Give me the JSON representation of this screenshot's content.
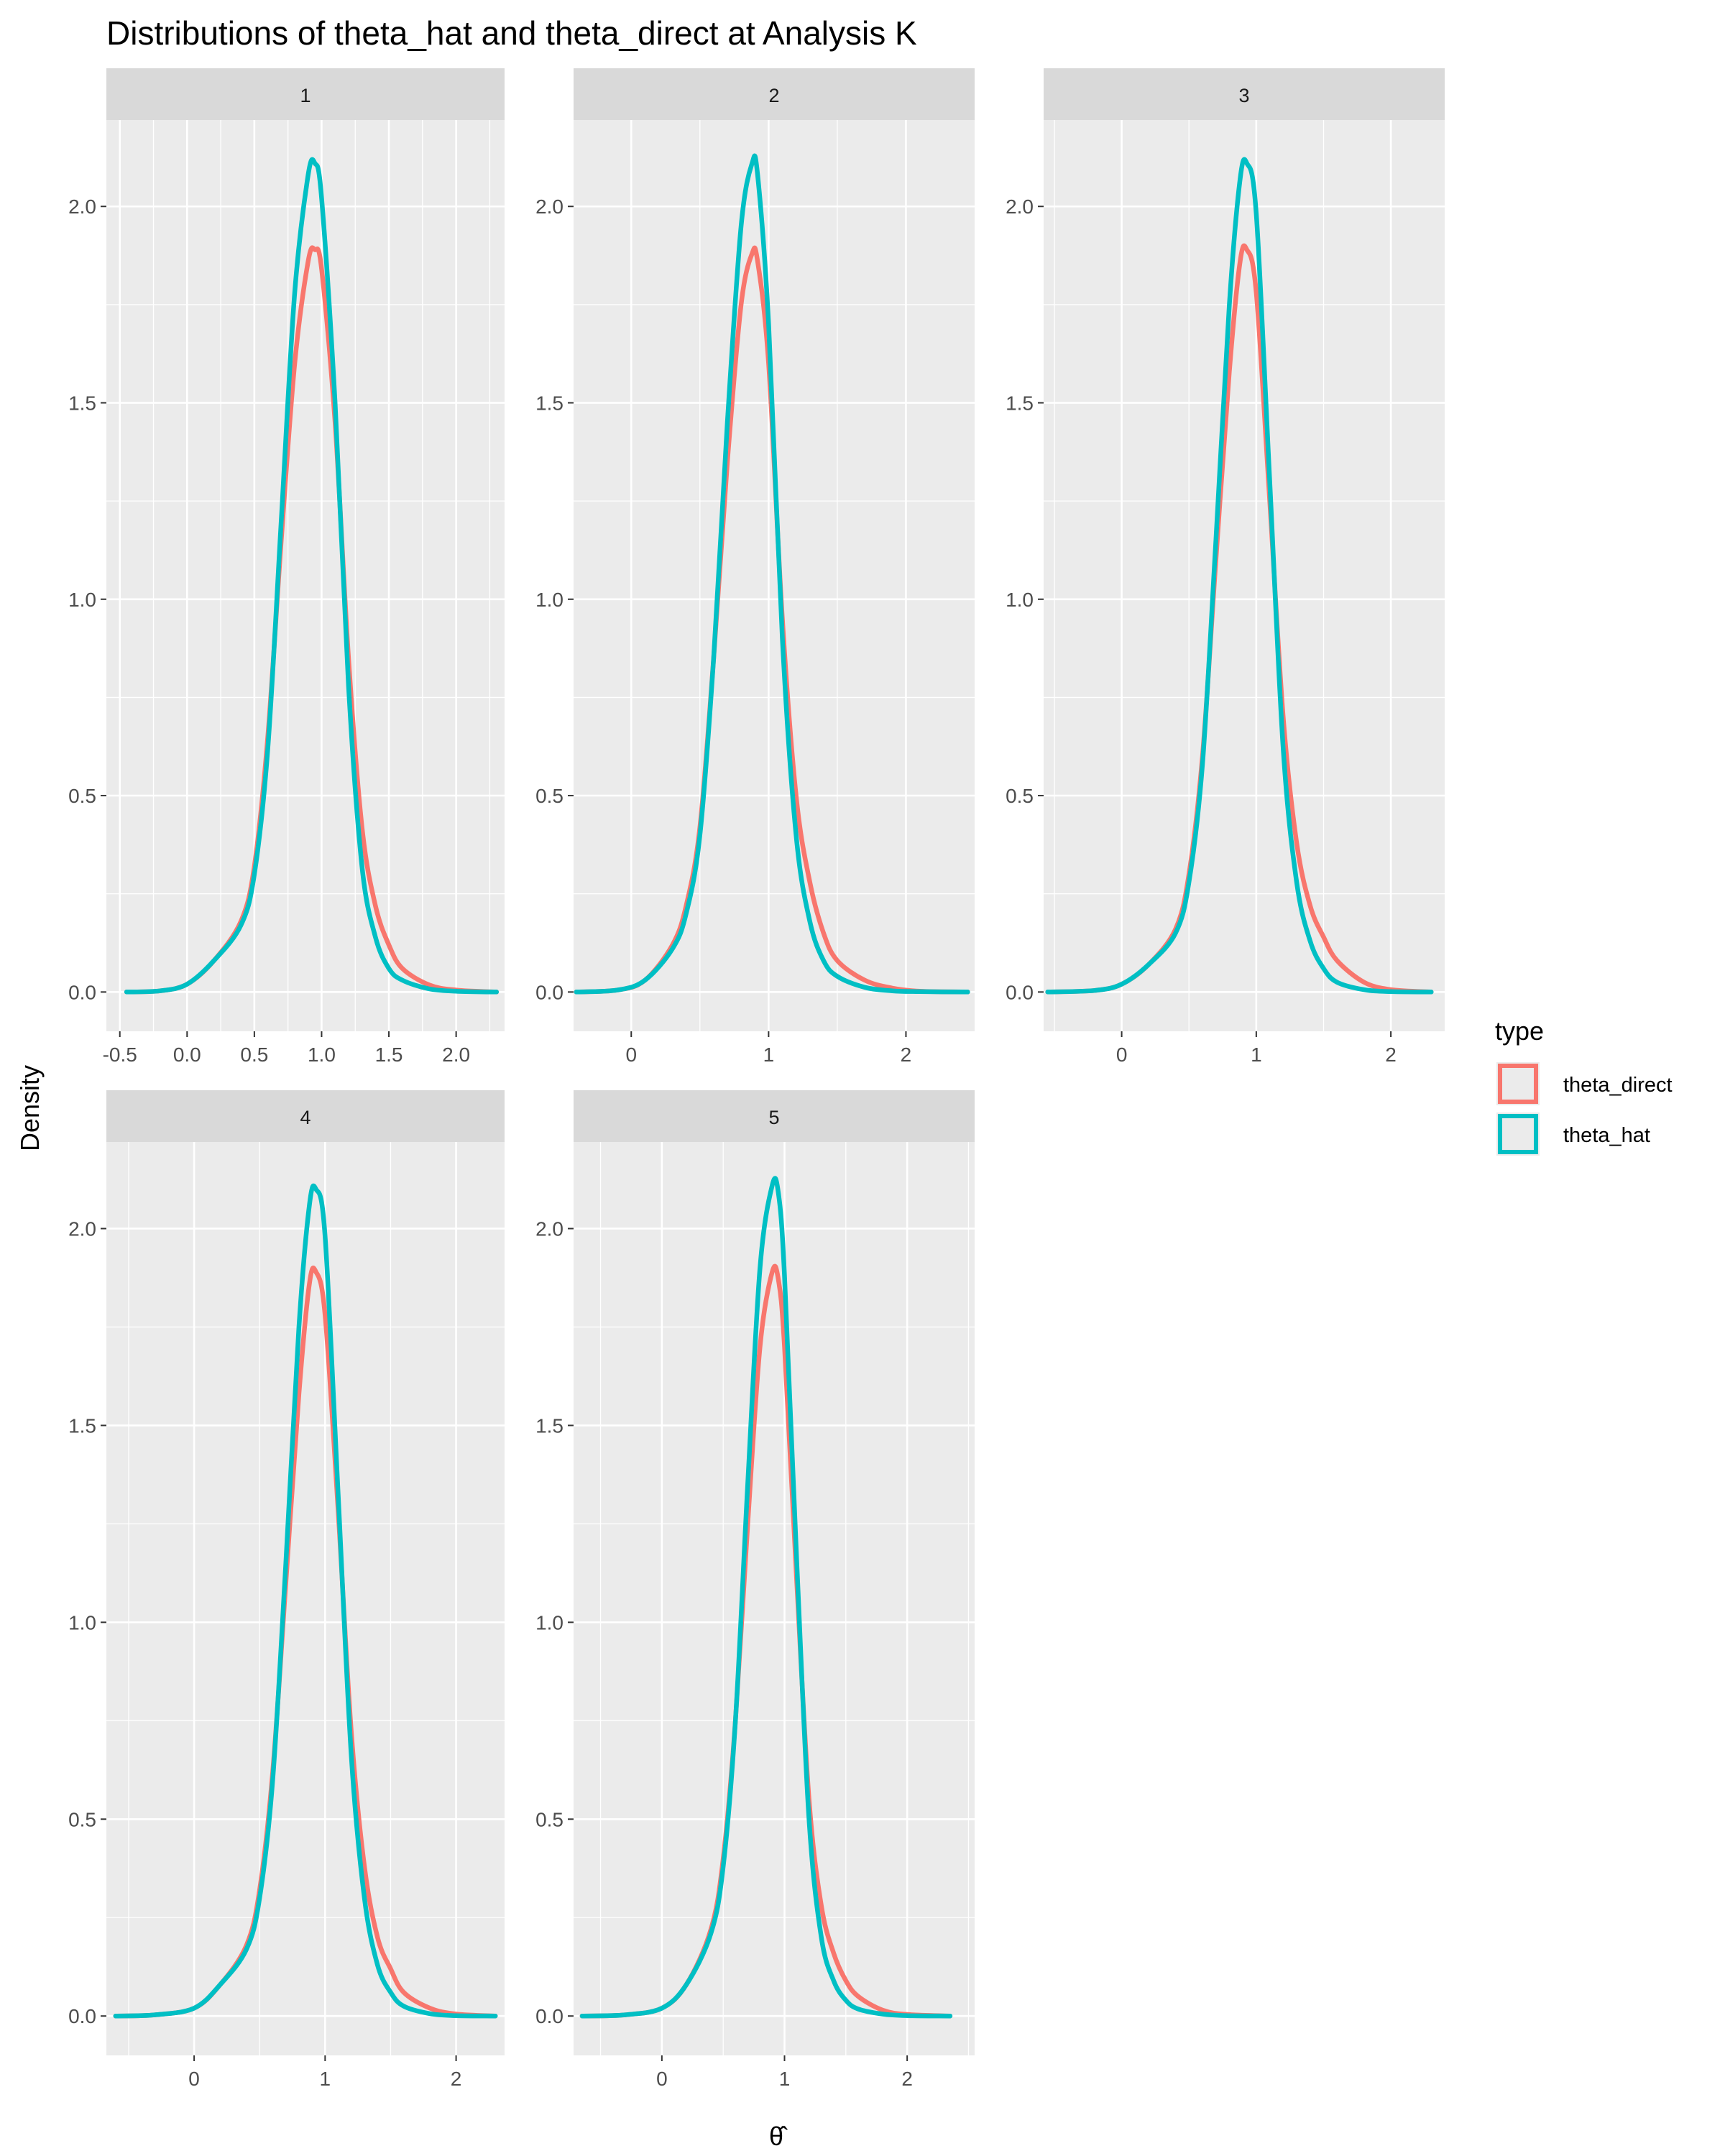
{
  "chart_data": {
    "type": "line",
    "title": "Distributions of theta_hat and theta_direct at Analysis K",
    "xlabel": "θ̂",
    "ylabel": "Density",
    "legend": {
      "title": "type",
      "position": "right",
      "entries": [
        {
          "label": "theta_direct",
          "color": "#F8766D"
        },
        {
          "label": "theta_hat",
          "color": "#00BFC4"
        }
      ]
    },
    "grid": true,
    "y_ticks": [
      "0.0",
      "0.5",
      "1.0",
      "1.5",
      "2.0"
    ],
    "ylim": [
      -0.1,
      2.22
    ],
    "panels": [
      {
        "strip": "1",
        "xlim": [
          -0.6,
          2.36
        ],
        "x_ticks": [
          {
            "v": -0.5,
            "label": "-0.5"
          },
          {
            "v": 0,
            "label": "0.0"
          },
          {
            "v": 0.5,
            "label": "0.5"
          },
          {
            "v": 1,
            "label": "1.0"
          },
          {
            "v": 1.5,
            "label": "1.5"
          },
          {
            "v": 2,
            "label": "2.0"
          }
        ],
        "series": [
          {
            "name": "theta_direct",
            "x": [
              -0.45,
              -0.2,
              0.0,
              0.2,
              0.4,
              0.5,
              0.6,
              0.7,
              0.8,
              0.9,
              0.95,
              1.0,
              1.1,
              1.2,
              1.3,
              1.4,
              1.5,
              1.6,
              1.8,
              2.0,
              2.3
            ],
            "y": [
              0.0,
              0.003,
              0.02,
              0.08,
              0.18,
              0.32,
              0.65,
              1.15,
              1.6,
              1.86,
              1.89,
              1.84,
              1.45,
              0.85,
              0.42,
              0.22,
              0.12,
              0.06,
              0.018,
              0.005,
              0.0
            ]
          },
          {
            "name": "theta_hat",
            "x": [
              -0.45,
              -0.2,
              0.0,
              0.2,
              0.4,
              0.5,
              0.6,
              0.7,
              0.8,
              0.9,
              0.95,
              1.0,
              1.1,
              1.2,
              1.3,
              1.4,
              1.5,
              1.6,
              1.8,
              2.0,
              2.3
            ],
            "y": [
              0.0,
              0.003,
              0.02,
              0.08,
              0.17,
              0.3,
              0.62,
              1.2,
              1.78,
              2.08,
              2.11,
              2.02,
              1.5,
              0.78,
              0.32,
              0.14,
              0.06,
              0.03,
              0.008,
              0.002,
              0.0
            ]
          }
        ]
      },
      {
        "strip": "2",
        "xlim": [
          -0.42,
          2.5
        ],
        "x_ticks": [
          {
            "v": 0,
            "label": "0"
          },
          {
            "v": 1,
            "label": "1"
          },
          {
            "v": 2,
            "label": "2"
          }
        ],
        "series": [
          {
            "name": "theta_direct",
            "x": [
              -0.4,
              -0.1,
              0.1,
              0.3,
              0.4,
              0.5,
              0.6,
              0.7,
              0.8,
              0.88,
              0.92,
              1.0,
              1.1,
              1.2,
              1.3,
              1.4,
              1.5,
              1.7,
              1.9,
              2.1,
              2.45
            ],
            "y": [
              0.0,
              0.005,
              0.03,
              0.12,
              0.22,
              0.42,
              0.85,
              1.35,
              1.75,
              1.88,
              1.86,
              1.6,
              0.95,
              0.5,
              0.28,
              0.15,
              0.08,
              0.03,
              0.01,
              0.002,
              0.0
            ]
          },
          {
            "name": "theta_hat",
            "x": [
              -0.4,
              -0.1,
              0.1,
              0.3,
              0.4,
              0.5,
              0.6,
              0.7,
              0.8,
              0.88,
              0.92,
              1.0,
              1.1,
              1.2,
              1.3,
              1.4,
              1.5,
              1.7,
              1.9,
              2.1,
              2.45
            ],
            "y": [
              0.0,
              0.005,
              0.03,
              0.11,
              0.2,
              0.4,
              0.85,
              1.45,
              1.95,
              2.11,
              2.08,
              1.7,
              0.9,
              0.4,
              0.18,
              0.08,
              0.04,
              0.012,
              0.003,
              0.001,
              0.0
            ]
          }
        ]
      },
      {
        "strip": "3",
        "xlim": [
          -0.58,
          2.4
        ],
        "x_ticks": [
          {
            "v": 0,
            "label": "0"
          },
          {
            "v": 1,
            "label": "1"
          },
          {
            "v": 2,
            "label": "2"
          }
        ],
        "series": [
          {
            "name": "theta_direct",
            "x": [
              -0.55,
              -0.2,
              0.0,
              0.2,
              0.4,
              0.5,
              0.6,
              0.7,
              0.8,
              0.88,
              0.93,
              1.0,
              1.1,
              1.2,
              1.3,
              1.4,
              1.5,
              1.6,
              1.8,
              2.0,
              2.3
            ],
            "y": [
              0.0,
              0.004,
              0.02,
              0.07,
              0.16,
              0.3,
              0.6,
              1.1,
              1.58,
              1.86,
              1.89,
              1.78,
              1.25,
              0.7,
              0.38,
              0.22,
              0.14,
              0.08,
              0.025,
              0.006,
              0.0
            ]
          },
          {
            "name": "theta_hat",
            "x": [
              -0.55,
              -0.2,
              0.0,
              0.2,
              0.4,
              0.5,
              0.6,
              0.7,
              0.8,
              0.88,
              0.93,
              1.0,
              1.1,
              1.2,
              1.3,
              1.4,
              1.5,
              1.6,
              1.8,
              2.0,
              2.3
            ],
            "y": [
              0.0,
              0.004,
              0.02,
              0.07,
              0.15,
              0.28,
              0.58,
              1.15,
              1.75,
              2.07,
              2.11,
              1.98,
              1.3,
              0.62,
              0.28,
              0.13,
              0.06,
              0.025,
              0.006,
              0.001,
              0.0
            ]
          }
        ]
      },
      {
        "strip": "4",
        "xlim": [
          -0.67,
          2.37
        ],
        "x_ticks": [
          {
            "v": 0,
            "label": "0"
          },
          {
            "v": 1,
            "label": "1"
          },
          {
            "v": 2,
            "label": "2"
          }
        ],
        "series": [
          {
            "name": "theta_direct",
            "x": [
              -0.6,
              -0.3,
              0.0,
              0.2,
              0.4,
              0.5,
              0.6,
              0.7,
              0.8,
              0.88,
              0.93,
              1.0,
              1.1,
              1.2,
              1.3,
              1.4,
              1.5,
              1.6,
              1.8,
              2.0,
              2.3
            ],
            "y": [
              0.0,
              0.003,
              0.02,
              0.08,
              0.18,
              0.32,
              0.62,
              1.1,
              1.58,
              1.86,
              1.89,
              1.78,
              1.28,
              0.72,
              0.38,
              0.2,
              0.12,
              0.06,
              0.02,
              0.005,
              0.0
            ]
          },
          {
            "name": "theta_hat",
            "x": [
              -0.6,
              -0.3,
              0.0,
              0.2,
              0.4,
              0.5,
              0.6,
              0.7,
              0.8,
              0.88,
              0.93,
              1.0,
              1.1,
              1.2,
              1.3,
              1.4,
              1.5,
              1.6,
              1.8,
              2.0,
              2.3
            ],
            "y": [
              0.0,
              0.003,
              0.02,
              0.08,
              0.17,
              0.3,
              0.6,
              1.15,
              1.75,
              2.06,
              2.1,
              1.98,
              1.32,
              0.66,
              0.3,
              0.13,
              0.06,
              0.025,
              0.006,
              0.001,
              0.0
            ]
          }
        ]
      },
      {
        "strip": "5",
        "xlim": [
          -0.72,
          2.55
        ],
        "x_ticks": [
          {
            "v": 0,
            "label": "0"
          },
          {
            "v": 1,
            "label": "1"
          },
          {
            "v": 2,
            "label": "2"
          }
        ],
        "series": [
          {
            "name": "theta_direct",
            "x": [
              -0.65,
              -0.3,
              0.0,
              0.2,
              0.4,
              0.5,
              0.6,
              0.7,
              0.8,
              0.9,
              0.95,
              1.0,
              1.1,
              1.2,
              1.3,
              1.4,
              1.5,
              1.6,
              1.8,
              2.0,
              2.35
            ],
            "y": [
              0.0,
              0.003,
              0.02,
              0.08,
              0.22,
              0.4,
              0.75,
              1.25,
              1.7,
              1.89,
              1.87,
              1.7,
              1.1,
              0.55,
              0.28,
              0.16,
              0.09,
              0.05,
              0.015,
              0.004,
              0.0
            ]
          },
          {
            "name": "theta_hat",
            "x": [
              -0.65,
              -0.3,
              0.0,
              0.2,
              0.4,
              0.5,
              0.6,
              0.7,
              0.8,
              0.9,
              0.95,
              1.0,
              1.1,
              1.2,
              1.3,
              1.4,
              1.5,
              1.6,
              1.8,
              2.0,
              2.35
            ],
            "y": [
              0.0,
              0.003,
              0.02,
              0.08,
              0.21,
              0.38,
              0.75,
              1.35,
              1.9,
              2.11,
              2.09,
              1.88,
              1.15,
              0.5,
              0.2,
              0.09,
              0.04,
              0.018,
              0.005,
              0.001,
              0.0
            ]
          }
        ]
      }
    ]
  }
}
